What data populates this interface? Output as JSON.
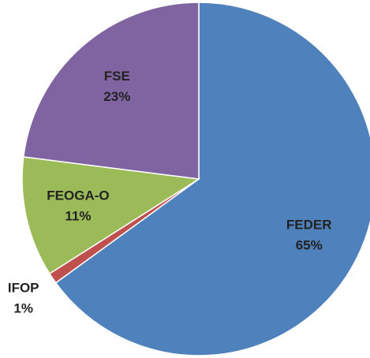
{
  "chart_data": {
    "type": "pie",
    "categories": [
      "FEDER",
      "IFOP",
      "FEOGA-O",
      "FSE"
    ],
    "values": [
      65,
      1,
      11,
      23
    ],
    "value_labels": [
      "65%",
      "1%",
      "11%",
      "23%"
    ],
    "colors": [
      "#4f81bd",
      "#c0504d",
      "#9bbb59",
      "#8064a2"
    ],
    "outside_labels": [
      false,
      true,
      false,
      false
    ]
  }
}
